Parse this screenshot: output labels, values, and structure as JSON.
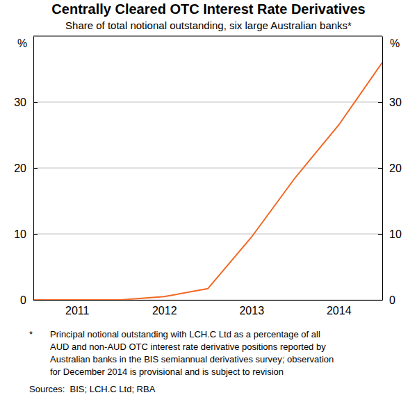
{
  "chart_data": {
    "type": "line",
    "title": "Centrally Cleared OTC Interest Rate Derivatives",
    "subtitle": "Share of total notional outstanding, six large Australian banks*",
    "ylabel": "%",
    "x": [
      2011,
      2011.5,
      2012,
      2012.5,
      2013,
      2013.5,
      2014,
      2014.5,
      2015
    ],
    "values": [
      0,
      0,
      0,
      0.5,
      1.7,
      9.5,
      18.5,
      26.5,
      36
    ],
    "color": "#f26722",
    "xlim": [
      2011,
      2015
    ],
    "xticks": [
      {
        "value": 2011.5,
        "label": "2011"
      },
      {
        "value": 2012.5,
        "label": "2012"
      },
      {
        "value": 2013.5,
        "label": "2013"
      },
      {
        "value": 2014.5,
        "label": "2014"
      }
    ],
    "ylim": [
      0,
      40
    ],
    "yticks": [
      0,
      10,
      20,
      30
    ],
    "grid": true,
    "footnote_symbol": "*",
    "footnote": [
      "Principal notional outstanding with LCH.C Ltd as a percentage of all",
      "AUD and non-AUD OTC interest rate derivative positions reported by",
      "Australian banks in the BIS semiannual derivatives survey; observation",
      "for December 2014 is provisional and is subject to revision"
    ],
    "source": "Sources:  BIS; LCH.C Ltd; RBA"
  }
}
